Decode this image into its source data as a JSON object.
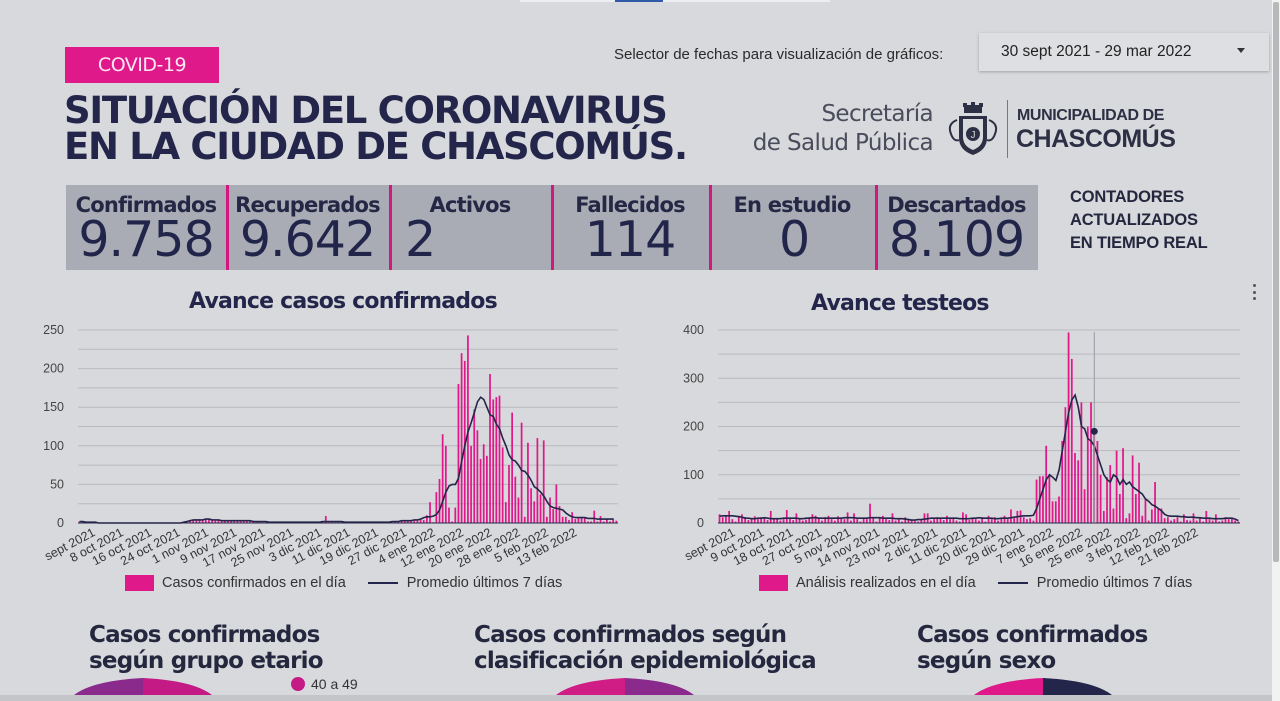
{
  "header": {
    "badge": "COVID-19",
    "title_line1": "SITUACIÓN DEL CORONAVIRUS",
    "title_line2": "EN LA CIUDAD DE CHASCOMÚS.",
    "date_selector_label": "Selector de fechas para visualización de gráficos:",
    "date_selector_value": "30 sept 2021 - 29 mar 2022",
    "org_secretaria_line1": "Secretaría",
    "org_secretaria_line2": "de Salud Pública",
    "org_muni_line1": "MUNICIPALIDAD DE",
    "org_muni_line2": "CHASCOMÚS"
  },
  "counters": [
    {
      "label": "Confirmados",
      "value": "9.758"
    },
    {
      "label": "Recuperados",
      "value": "9.642"
    },
    {
      "label": "Activos",
      "value": "2"
    },
    {
      "label": "Fallecidos",
      "value": "114"
    },
    {
      "label": "En estudio",
      "value": "0"
    },
    {
      "label": "Descartados",
      "value": "8.109"
    }
  ],
  "realtime_note": {
    "line1": "CONTADORES",
    "line2": "ACTUALIZADOS",
    "line3": "EN TIEMPO REAL"
  },
  "colors": {
    "accent": "#e0198a",
    "navy": "#23264a",
    "counter_bg": "#a9abb5",
    "page_bg": "#d8d9dc"
  },
  "sections": {
    "age": {
      "title_line1": "Casos confirmados",
      "title_line2": "según grupo etario",
      "legend_first": "40 a 49"
    },
    "epi": {
      "title_line1": "Casos confirmados según",
      "title_line2": "clasificación epidemiológica"
    },
    "sex": {
      "title_line1": "Casos confirmados",
      "title_line2": "según sexo"
    }
  },
  "chart_data": [
    {
      "type": "bar",
      "title": "Avance casos confirmados",
      "xlabel": "",
      "ylabel": "",
      "ylim": [
        0,
        250
      ],
      "yticks": [
        0,
        50,
        100,
        150,
        200,
        250
      ],
      "grid": true,
      "legend_position": "bottom",
      "x_tick_labels": [
        "sept 2021",
        "8 oct 2021",
        "16 oct 2021",
        "24 oct 2021",
        "1 nov 2021",
        "9 nov 2021",
        "17 nov 2021",
        "25 nov 2021",
        "3 dic 2021",
        "11 dic 2021",
        "19 dic 2021",
        "27 dic 2021",
        "4 ene 2022",
        "12 ene 2022",
        "20 ene 2022",
        "28 ene 2022",
        "5 feb 2022",
        "13 feb 2022"
      ],
      "series": [
        {
          "name": "Casos confirmados en el día",
          "kind": "bar",
          "color": "#e0198a",
          "values": [
            2,
            1,
            1,
            0,
            1,
            0,
            0,
            0,
            0,
            0,
            0,
            0,
            0,
            0,
            0,
            0,
            0,
            0,
            0,
            0,
            0,
            0,
            0,
            0,
            0,
            0,
            0,
            0,
            0,
            0,
            0,
            0,
            0,
            0,
            2,
            3,
            4,
            5,
            5,
            4,
            6,
            5,
            4,
            3,
            4,
            3,
            3,
            2,
            3,
            4,
            3,
            2,
            3,
            3,
            2,
            3,
            2,
            2,
            1,
            1,
            1,
            1,
            1,
            1,
            1,
            1,
            1,
            1,
            0,
            1,
            0,
            1,
            1,
            1,
            1,
            1,
            1,
            1,
            9,
            1,
            2,
            1,
            2,
            1,
            2,
            1,
            1,
            1,
            1,
            2,
            1,
            1,
            1,
            1,
            1,
            1,
            1,
            1,
            1,
            1,
            2,
            2,
            3,
            2,
            3,
            4,
            3,
            3,
            5,
            4,
            10,
            27,
            1,
            40,
            57,
            115,
            100,
            20,
            2,
            20,
            180,
            220,
            210,
            243,
            100,
            147,
            120,
            83,
            102,
            87,
            193,
            160,
            163,
            165,
            98,
            27,
            75,
            143,
            60,
            33,
            130,
            8,
            104,
            45,
            28,
            110,
            37,
            107,
            8,
            33,
            18,
            50,
            22,
            8,
            8,
            4,
            14,
            5,
            6,
            8,
            7,
            2,
            2,
            16,
            2,
            9,
            2,
            5,
            2,
            6,
            3
          ]
        },
        {
          "name": "Promedio últimos 7 días",
          "kind": "line",
          "color": "#23264a",
          "values": [
            2,
            2,
            1,
            1,
            1,
            1,
            0,
            0,
            0,
            0,
            0,
            0,
            0,
            0,
            0,
            0,
            0,
            0,
            0,
            0,
            0,
            0,
            0,
            0,
            0,
            0,
            0,
            0,
            0,
            0,
            0,
            0,
            0,
            1,
            2,
            3,
            4,
            4,
            4,
            4,
            5,
            5,
            4,
            4,
            4,
            3,
            3,
            3,
            3,
            3,
            3,
            3,
            3,
            3,
            3,
            2,
            2,
            2,
            2,
            2,
            1,
            1,
            1,
            1,
            1,
            1,
            1,
            1,
            1,
            1,
            1,
            1,
            1,
            1,
            1,
            1,
            1,
            2,
            2,
            2,
            2,
            2,
            2,
            2,
            1,
            1,
            1,
            1,
            1,
            1,
            1,
            1,
            1,
            1,
            1,
            1,
            1,
            1,
            1,
            2,
            2,
            2,
            3,
            3,
            3,
            3,
            4,
            4,
            5,
            7,
            8,
            8,
            9,
            11,
            17,
            28,
            40,
            48,
            50,
            50,
            58,
            80,
            100,
            118,
            130,
            143,
            157,
            163,
            160,
            150,
            140,
            138,
            128,
            122,
            110,
            100,
            88,
            82,
            80,
            75,
            68,
            67,
            62,
            55,
            47,
            44,
            40,
            35,
            28,
            22,
            20,
            19,
            18,
            17,
            13,
            10,
            8,
            7,
            7,
            7,
            7,
            6,
            6,
            6,
            5,
            5,
            5,
            5,
            5,
            5
          ]
        }
      ]
    },
    {
      "type": "bar",
      "title": "Avance testeos",
      "xlabel": "",
      "ylabel": "",
      "ylim": [
        0,
        400
      ],
      "yticks": [
        0,
        100,
        200,
        300,
        400
      ],
      "grid": true,
      "legend_position": "bottom",
      "x_tick_labels": [
        "sept 2021",
        "9 oct 2021",
        "18 oct 2021",
        "27 oct 2021",
        "5 nov 2021",
        "14 nov 2021",
        "23 nov 2021",
        "2 dic 2021",
        "11 dic 2021",
        "20 dic 2021",
        "29 dic 2021",
        "7 ene 2022",
        "16 ene 2022",
        "25 ene 2022",
        "3 feb 2022",
        "12 feb 2022",
        "21 feb 2022"
      ],
      "series": [
        {
          "name": "Análisis realizados en el día",
          "kind": "bar",
          "color": "#e0198a",
          "values": [
            18,
            12,
            15,
            25,
            8,
            3,
            15,
            18,
            12,
            6,
            10,
            14,
            8,
            12,
            10,
            6,
            25,
            8,
            10,
            5,
            8,
            27,
            10,
            6,
            20,
            8,
            5,
            7,
            12,
            18,
            15,
            10,
            5,
            12,
            15,
            8,
            5,
            14,
            10,
            8,
            22,
            5,
            20,
            8,
            3,
            10,
            8,
            40,
            12,
            3,
            10,
            15,
            8,
            6,
            20,
            5,
            8,
            3,
            12,
            6,
            7,
            4,
            3,
            8,
            20,
            20,
            5,
            8,
            12,
            10,
            6,
            15,
            8,
            10,
            5,
            3,
            22,
            18,
            6,
            10,
            8,
            5,
            12,
            3,
            15,
            8,
            12,
            5,
            10,
            15,
            8,
            28,
            10,
            25,
            26,
            12,
            8,
            10,
            5,
            90,
            97,
            97,
            160,
            100,
            45,
            45,
            55,
            170,
            240,
            395,
            340,
            145,
            130,
            250,
            70,
            200,
            250,
            190,
            170,
            100,
            25,
            95,
            120,
            30,
            150,
            60,
            155,
            10,
            20,
            140,
            60,
            125,
            15,
            50,
            5,
            28,
            85,
            30,
            30,
            10,
            12,
            5,
            8,
            12,
            3,
            18,
            6,
            5,
            20,
            5,
            10,
            3,
            25,
            8,
            5,
            18,
            3,
            5,
            12,
            8,
            10,
            5,
            3
          ]
        },
        {
          "name": "Promedio últimos 7 días",
          "kind": "line",
          "color": "#23264a",
          "values": [
            14,
            15,
            15,
            15,
            15,
            14,
            13,
            12,
            10,
            10,
            9,
            9,
            10,
            10,
            11,
            10,
            9,
            9,
            9,
            9,
            10,
            10,
            10,
            10,
            10,
            9,
            9,
            10,
            10,
            11,
            11,
            10,
            10,
            10,
            10,
            10,
            10,
            10,
            10,
            11,
            11,
            11,
            11,
            10,
            10,
            10,
            10,
            11,
            11,
            11,
            11,
            10,
            10,
            10,
            10,
            9,
            9,
            9,
            8,
            7,
            6,
            6,
            7,
            7,
            8,
            9,
            10,
            10,
            10,
            10,
            10,
            10,
            10,
            10,
            10,
            9,
            9,
            9,
            9,
            10,
            10,
            11,
            10,
            10,
            10,
            10,
            9,
            9,
            10,
            10,
            10,
            11,
            12,
            13,
            14,
            15,
            15,
            15,
            16,
            30,
            50,
            70,
            90,
            100,
            95,
            88,
            110,
            150,
            190,
            230,
            255,
            265,
            240,
            200,
            195,
            175,
            170,
            160,
            140,
            120,
            100,
            90,
            85,
            100,
            95,
            80,
            90,
            80,
            85,
            75,
            70,
            65,
            60,
            50,
            45,
            38,
            35,
            30,
            25,
            18,
            15,
            14,
            14,
            14,
            13,
            13,
            12,
            12,
            12,
            11,
            11,
            10,
            10,
            10,
            9,
            9,
            9,
            9,
            10,
            10,
            10,
            8,
            5
          ]
        }
      ],
      "hover_marker": {
        "index": 117,
        "value": 190
      }
    }
  ]
}
